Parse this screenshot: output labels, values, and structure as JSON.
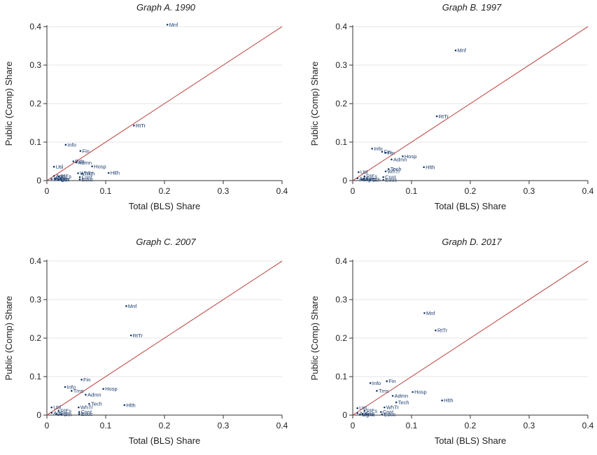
{
  "chart_data": [
    {
      "type": "scatter",
      "title": "Graph A. 1990",
      "xlabel": "Total (BLS) Share",
      "ylabel": "Public (Comp) Share",
      "xlim": [
        0,
        0.4
      ],
      "ylim": [
        0,
        0.4
      ],
      "xticks": [
        "0",
        "0.1",
        "0.2",
        "0.3",
        "0.4"
      ],
      "yticks": [
        "0",
        "0.1",
        "0.2",
        "0.3",
        "0.4"
      ],
      "grid": "horizontal",
      "reference_line": "45-degree",
      "points": [
        {
          "label": "Mnf",
          "x": 0.205,
          "y": 0.405
        },
        {
          "label": "RtTr",
          "x": 0.148,
          "y": 0.143
        },
        {
          "label": "Info",
          "x": 0.032,
          "y": 0.093
        },
        {
          "label": "Fin",
          "x": 0.057,
          "y": 0.077
        },
        {
          "label": "Rds",
          "x": 0.045,
          "y": 0.05
        },
        {
          "label": "Admn",
          "x": 0.05,
          "y": 0.047
        },
        {
          "label": "Hosp",
          "x": 0.077,
          "y": 0.037
        },
        {
          "label": "Util",
          "x": 0.012,
          "y": 0.036
        },
        {
          "label": "WhTr",
          "x": 0.053,
          "y": 0.019
        },
        {
          "label": "Hlth",
          "x": 0.105,
          "y": 0.02
        },
        {
          "label": "Tech",
          "x": 0.06,
          "y": 0.018
        },
        {
          "label": "Cnst",
          "x": 0.056,
          "y": 0.009
        },
        {
          "label": "Educ",
          "x": 0.056,
          "y": 0.003
        },
        {
          "label": "Agri",
          "x": 0.012,
          "y": 0.012
        },
        {
          "label": "RlEs",
          "x": 0.02,
          "y": 0.011
        },
        {
          "label": "Arts",
          "x": 0.015,
          "y": 0.006
        },
        {
          "label": "Mgmt",
          "x": 0.014,
          "y": 0.004
        },
        {
          "label": "Oth",
          "x": 0.02,
          "y": 0.002
        },
        {
          "label": "Mine",
          "x": 0.008,
          "y": 0.004
        }
      ]
    },
    {
      "type": "scatter",
      "title": "Graph B. 1997",
      "xlabel": "Total (BLS) Share",
      "ylabel": "Public (Comp) Share",
      "xlim": [
        0,
        0.4
      ],
      "ylim": [
        0,
        0.4
      ],
      "xticks": [
        "0",
        "0.1",
        "0.2",
        "0.3",
        "0.4"
      ],
      "yticks": [
        "0",
        "0.1",
        "0.2",
        "0.3",
        "0.4"
      ],
      "grid": "horizontal",
      "reference_line": "45-degree",
      "points": [
        {
          "label": "Mnf",
          "x": 0.175,
          "y": 0.338
        },
        {
          "label": "RtTr",
          "x": 0.143,
          "y": 0.167
        },
        {
          "label": "Info",
          "x": 0.033,
          "y": 0.083
        },
        {
          "label": "Fin",
          "x": 0.05,
          "y": 0.075
        },
        {
          "label": "Fin",
          "x": 0.056,
          "y": 0.072
        },
        {
          "label": "Hosp",
          "x": 0.085,
          "y": 0.063
        },
        {
          "label": "Admn",
          "x": 0.066,
          "y": 0.055
        },
        {
          "label": "Hlth",
          "x": 0.121,
          "y": 0.035
        },
        {
          "label": "Tech",
          "x": 0.061,
          "y": 0.03
        },
        {
          "label": "WhTr",
          "x": 0.056,
          "y": 0.024
        },
        {
          "label": "Util",
          "x": 0.01,
          "y": 0.022
        },
        {
          "label": "Cnst",
          "x": 0.052,
          "y": 0.009
        },
        {
          "label": "Educ",
          "x": 0.052,
          "y": 0.002
        },
        {
          "label": "RlEs",
          "x": 0.02,
          "y": 0.011
        },
        {
          "label": "Agri",
          "x": 0.008,
          "y": 0.006
        },
        {
          "label": "Arts",
          "x": 0.018,
          "y": 0.004
        },
        {
          "label": "Mgmt",
          "x": 0.015,
          "y": 0.003
        },
        {
          "label": "Oth",
          "x": 0.03,
          "y": 0.002
        }
      ]
    },
    {
      "type": "scatter",
      "title": "Graph C. 2007",
      "xlabel": "Total (BLS) Share",
      "ylabel": "Public (Comp) Share",
      "xlim": [
        0,
        0.4
      ],
      "ylim": [
        0,
        0.4
      ],
      "xticks": [
        "0",
        "0.1",
        "0.2",
        "0.3",
        "0.4"
      ],
      "yticks": [
        "0",
        "0.1",
        "0.2",
        "0.3",
        "0.4"
      ],
      "grid": "horizontal",
      "reference_line": "45-degree",
      "points": [
        {
          "label": "Mnf",
          "x": 0.135,
          "y": 0.283
        },
        {
          "label": "RtTr",
          "x": 0.143,
          "y": 0.207
        },
        {
          "label": "Fin",
          "x": 0.059,
          "y": 0.092
        },
        {
          "label": "Info",
          "x": 0.031,
          "y": 0.073
        },
        {
          "label": "Hosp",
          "x": 0.096,
          "y": 0.068
        },
        {
          "label": "Trns",
          "x": 0.042,
          "y": 0.063
        },
        {
          "label": "Admn",
          "x": 0.066,
          "y": 0.053
        },
        {
          "label": "Tech",
          "x": 0.072,
          "y": 0.029
        },
        {
          "label": "Hlth",
          "x": 0.132,
          "y": 0.026
        },
        {
          "label": "WhTr",
          "x": 0.054,
          "y": 0.02
        },
        {
          "label": "Util",
          "x": 0.008,
          "y": 0.02
        },
        {
          "label": "Cnst",
          "x": 0.055,
          "y": 0.008
        },
        {
          "label": "Educ",
          "x": 0.055,
          "y": 0.003
        },
        {
          "label": "RlEs",
          "x": 0.02,
          "y": 0.011
        },
        {
          "label": "Agri",
          "x": 0.008,
          "y": 0.006
        },
        {
          "label": "Arts",
          "x": 0.016,
          "y": 0.003
        },
        {
          "label": "Oth",
          "x": 0.025,
          "y": 0.002
        }
      ]
    },
    {
      "type": "scatter",
      "title": "Graph D. 2017",
      "xlabel": "Total (BLS) Share",
      "ylabel": "Public (Comp) Share",
      "xlim": [
        0,
        0.4
      ],
      "ylim": [
        0,
        0.4
      ],
      "xticks": [
        "0",
        "0.1",
        "0.2",
        "0.3",
        "0.4"
      ],
      "yticks": [
        "0",
        "0.1",
        "0.2",
        "0.3",
        "0.4"
      ],
      "grid": "horizontal",
      "reference_line": "45-degree",
      "points": [
        {
          "label": "Mnf",
          "x": 0.122,
          "y": 0.265
        },
        {
          "label": "RtTr",
          "x": 0.141,
          "y": 0.22
        },
        {
          "label": "Fin",
          "x": 0.058,
          "y": 0.088
        },
        {
          "label": "Info",
          "x": 0.03,
          "y": 0.083
        },
        {
          "label": "Trns",
          "x": 0.041,
          "y": 0.063
        },
        {
          "label": "Hosp",
          "x": 0.102,
          "y": 0.06
        },
        {
          "label": "Admn",
          "x": 0.068,
          "y": 0.05
        },
        {
          "label": "Hlth",
          "x": 0.152,
          "y": 0.038
        },
        {
          "label": "Tech",
          "x": 0.074,
          "y": 0.033
        },
        {
          "label": "WhTr",
          "x": 0.054,
          "y": 0.02
        },
        {
          "label": "Util",
          "x": 0.008,
          "y": 0.018
        },
        {
          "label": "RlEs",
          "x": 0.02,
          "y": 0.011
        },
        {
          "label": "Cnst",
          "x": 0.048,
          "y": 0.008
        },
        {
          "label": "Educ",
          "x": 0.05,
          "y": 0.002
        },
        {
          "label": "Agri",
          "x": 0.008,
          "y": 0.005
        },
        {
          "label": "Arts",
          "x": 0.017,
          "y": 0.003
        },
        {
          "label": "Mgmt",
          "x": 0.012,
          "y": 0.001
        }
      ]
    }
  ],
  "colors": {
    "marker": "#1c3d6e",
    "reference_line": "#c0504d",
    "grid": "#e6e6e6",
    "axis": "#333333"
  }
}
